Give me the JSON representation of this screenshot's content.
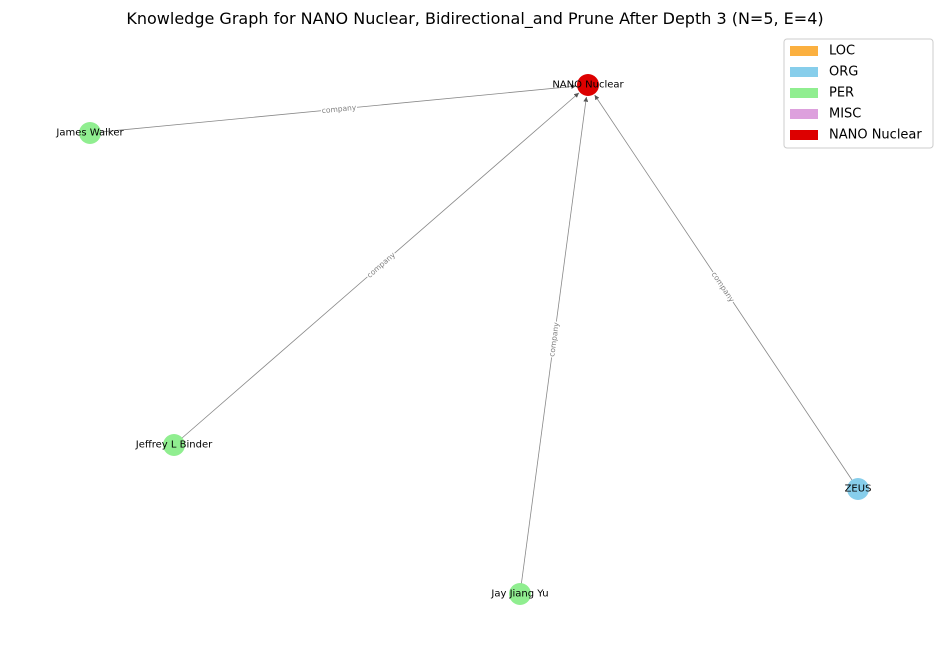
{
  "title": "Knowledge Graph for NANO Nuclear, Bidirectional_and Prune After Depth 3 (N=5, E=4)",
  "legend": [
    {
      "label": "LOC",
      "color": "#FBB040"
    },
    {
      "label": "ORG",
      "color": "#87CEEB"
    },
    {
      "label": "PER",
      "color": "#90EE90"
    },
    {
      "label": "MISC",
      "color": "#DDA0DD"
    },
    {
      "label": "NANO Nuclear",
      "color": "#DD0000"
    }
  ],
  "nodes": [
    {
      "id": "nano",
      "label": "NANO Nuclear",
      "type": "NANO Nuclear"
    },
    {
      "id": "james",
      "label": "James Walker",
      "type": "PER"
    },
    {
      "id": "jeffrey",
      "label": "Jeffrey L Binder",
      "type": "PER"
    },
    {
      "id": "jay",
      "label": "Jay Jiang Yu",
      "type": "PER"
    },
    {
      "id": "zeus",
      "label": "ZEUS",
      "type": "ORG"
    }
  ],
  "edges": [
    {
      "source": "james",
      "target": "nano",
      "label": "company"
    },
    {
      "source": "jeffrey",
      "target": "nano",
      "label": "company"
    },
    {
      "source": "jay",
      "target": "nano",
      "label": "company"
    },
    {
      "source": "zeus",
      "target": "nano",
      "label": "company"
    }
  ]
}
